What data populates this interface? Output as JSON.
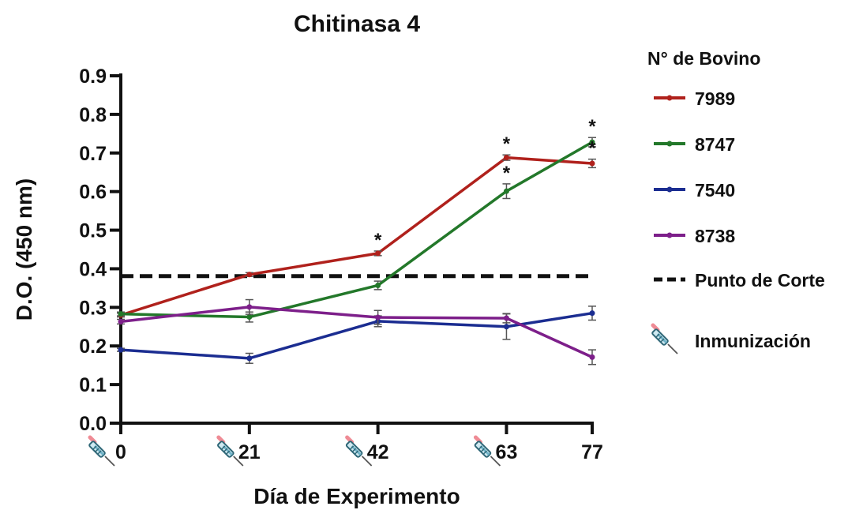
{
  "chart_data": {
    "type": "line",
    "title": "Chitinasa 4",
    "xlabel": "Día de Experimento",
    "ylabel": "D.O. (450 nm)",
    "x": [
      0,
      21,
      42,
      63,
      77
    ],
    "x_tick_labels": [
      "0",
      "21",
      "42",
      "63",
      "77"
    ],
    "xlim": [
      0,
      77
    ],
    "ylim": [
      0,
      0.9
    ],
    "y_ticks": [
      0,
      0.1,
      0.2,
      0.3,
      0.4,
      0.5,
      0.6,
      0.7,
      0.8,
      0.9
    ],
    "y_tick_labels": [
      "0.0",
      "0.1",
      "0.2",
      "0.3",
      "0.4",
      "0.5",
      "0.6",
      "0.7",
      "0.8",
      "0.9"
    ],
    "grid": false,
    "legend_title": "N° de Bovino",
    "legend_position": "right",
    "series": [
      {
        "name": "7989",
        "color": "#b0211c",
        "values": [
          0.28,
          0.385,
          0.44,
          0.688,
          0.673
        ],
        "errors": [
          0.005,
          0.005,
          0.006,
          0.007,
          0.011
        ]
      },
      {
        "name": "8747",
        "color": "#23782a",
        "values": [
          0.283,
          0.275,
          0.357,
          0.601,
          0.728
        ],
        "errors": [
          0.005,
          0.013,
          0.011,
          0.019,
          0.012
        ]
      },
      {
        "name": "7540",
        "color": "#1b2d91",
        "values": [
          0.19,
          0.168,
          0.264,
          0.25,
          0.285
        ],
        "errors": [
          0.004,
          0.013,
          0.014,
          0.033,
          0.018
        ]
      },
      {
        "name": "8738",
        "color": "#7d1f8a",
        "values": [
          0.263,
          0.301,
          0.274,
          0.272,
          0.171
        ],
        "errors": [
          0.006,
          0.019,
          0.018,
          0.012,
          0.019
        ]
      }
    ],
    "cutoff": {
      "name": "Punto de Corte",
      "value": 0.381,
      "color": "#111111"
    },
    "significance_marks": [
      {
        "x": 42,
        "series": "7989",
        "label": "*"
      },
      {
        "x": 63,
        "series": "7989",
        "label": "*"
      },
      {
        "x": 63,
        "series": "8747",
        "label": "*"
      },
      {
        "x": 77,
        "series": "8747",
        "label": "*"
      },
      {
        "x": 77,
        "series": "7989",
        "label": "*"
      }
    ],
    "immunization": {
      "name": "Inmunización",
      "icon": "syringe-icon",
      "days": [
        0,
        21,
        42,
        63
      ]
    }
  }
}
